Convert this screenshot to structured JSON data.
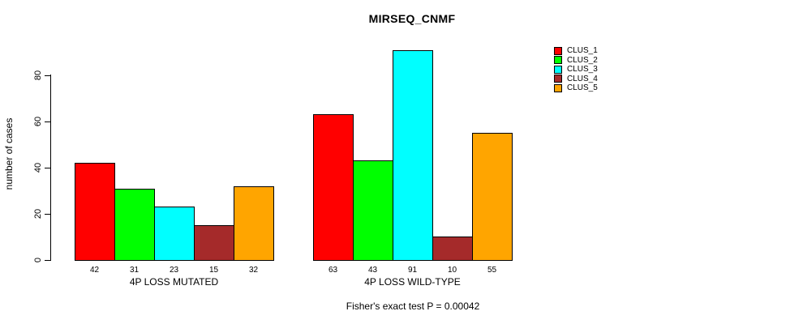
{
  "chart_data": {
    "type": "bar",
    "title": "MIRSEQ_CNMF",
    "ylabel": "number of cases",
    "xlabel": "",
    "yticks": [
      0,
      20,
      40,
      60,
      80
    ],
    "ylim": [
      0,
      80
    ],
    "grid": false,
    "legend_position": "top-right",
    "categories": [
      "4P LOSS MUTATED",
      "4P LOSS WILD-TYPE"
    ],
    "series": [
      {
        "name": "CLUS_1",
        "color": "#ff0000",
        "values": [
          42,
          63
        ]
      },
      {
        "name": "CLUS_2",
        "color": "#00ff00",
        "values": [
          31,
          43
        ]
      },
      {
        "name": "CLUS_3",
        "color": "#00ffff",
        "values": [
          23,
          91
        ]
      },
      {
        "name": "CLUS_4",
        "color": "#a52a2a",
        "values": [
          15,
          10
        ]
      },
      {
        "name": "CLUS_5",
        "color": "#ffa500",
        "values": [
          32,
          55
        ]
      }
    ],
    "bar_value_labels": true,
    "annotation": "Fisher's exact test P = 0.00042",
    "text_color": "#000000"
  }
}
